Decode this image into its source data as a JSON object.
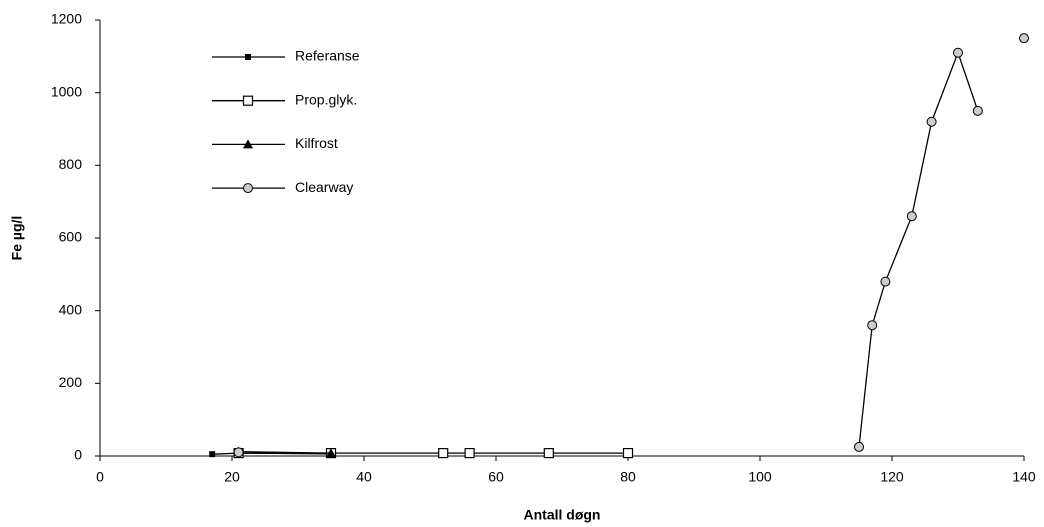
{
  "chart_data": {
    "type": "line",
    "x_label": "Antall døgn",
    "y_label": "Fe µg/l",
    "xlim": [
      0,
      140
    ],
    "xticks": [
      0,
      20,
      40,
      60,
      80,
      100,
      120,
      140
    ],
    "ylim": [
      0,
      1200
    ],
    "yticks": [
      0,
      200,
      400,
      600,
      800,
      1000,
      1200
    ],
    "grid": false,
    "legend": "upper left",
    "series": [
      {
        "name": "Referanse",
        "color": "#000000",
        "marker": "square-filled",
        "x": [
          17,
          21,
          35
        ],
        "values": [
          5,
          8,
          6
        ]
      },
      {
        "name": "Prop.glyk.",
        "color": "#000000",
        "marker": "square-open",
        "x": [
          21,
          35,
          52,
          56,
          68,
          80
        ],
        "values": [
          8,
          8,
          8,
          8,
          8,
          8
        ]
      },
      {
        "name": "Kilfrost",
        "color": "#000000",
        "marker": "triangle",
        "x": [
          21,
          35
        ],
        "values": [
          12,
          8
        ]
      },
      {
        "name": "Clearway",
        "color": "#000000",
        "marker": "circle",
        "x": [
          21,
          null,
          115,
          117,
          119,
          123,
          126,
          130,
          133,
          null,
          140
        ],
        "values": [
          10,
          null,
          25,
          360,
          480,
          660,
          920,
          1110,
          950,
          null,
          1150
        ]
      }
    ]
  }
}
